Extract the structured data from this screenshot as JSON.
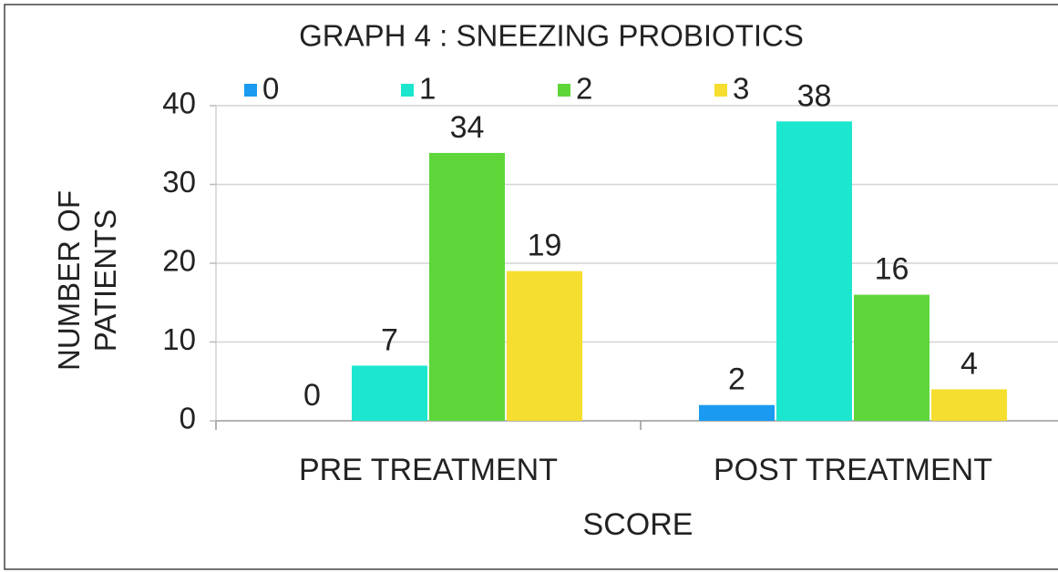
{
  "chart_data": {
    "type": "bar",
    "title": "GRAPH 4 : SNEEZING PROBIOTICS",
    "x_label": "SCORE",
    "y_label": "NUMBER OF PATIENTS",
    "categories": [
      "PRE TREATMENT",
      "POST TREATMENT"
    ],
    "series": [
      {
        "name": "0",
        "color": "#1a9af0",
        "values": [
          0,
          2
        ]
      },
      {
        "name": "1",
        "color": "#1de6cf",
        "values": [
          7,
          38
        ]
      },
      {
        "name": "2",
        "color": "#5ed63a",
        "values": [
          34,
          16
        ]
      },
      {
        "name": "3",
        "color": "#f5de2f",
        "values": [
          19,
          4
        ]
      }
    ],
    "ylim": [
      0,
      40
    ],
    "yticks": [
      0,
      10,
      20,
      30,
      40
    ],
    "grid": true,
    "legend": "top"
  }
}
